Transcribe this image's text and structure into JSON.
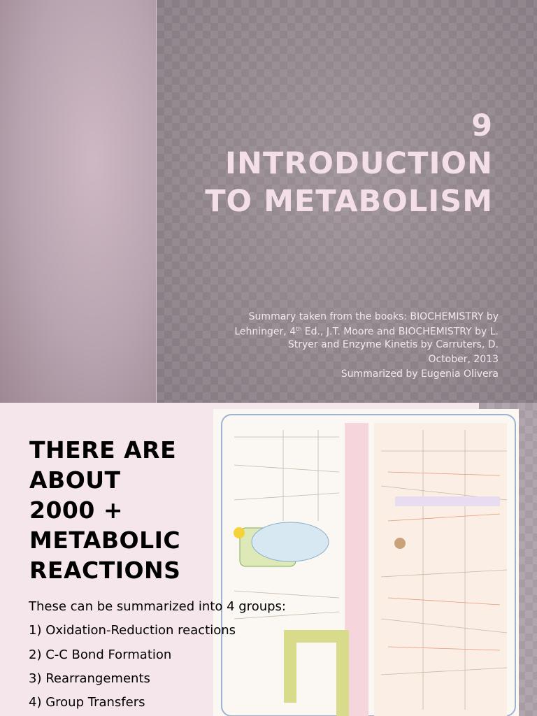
{
  "slide1": {
    "title": [
      "9",
      "INTRODUCTION",
      "TO METABOLISM"
    ],
    "subtitle": {
      "line1": "Summary taken from the books: BIOCHEMISTRY by",
      "line2": {
        "before": "Lehninger, 4",
        "sup": "th",
        "after": " Ed., J.T. Moore and BIOCHEMISTRY by L."
      },
      "line3": "Stryer and Enzyme Kinetis by Carruters, D.",
      "date": "October, 2013",
      "author": "Summarized by Eugenia Olivera"
    }
  },
  "slide2": {
    "heading": [
      "THERE ARE",
      "ABOUT",
      "2000 +",
      "METABOLIC",
      "REACTIONS"
    ],
    "intro": "These can be summarized into 4 groups:",
    "items": [
      "1) Oxidation-Reduction reactions",
      "2) C-C Bond Formation",
      "3) Rearrangements",
      "4) Group Transfers"
    ]
  }
}
